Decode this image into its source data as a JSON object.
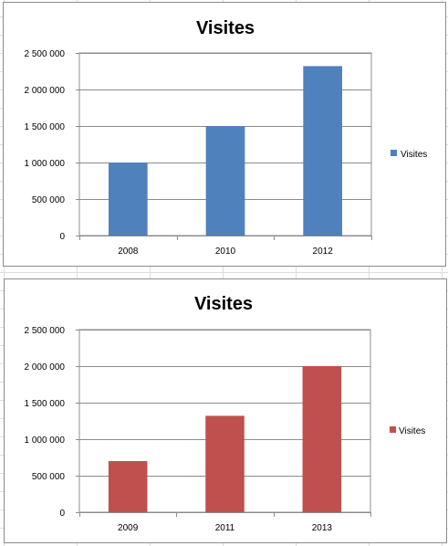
{
  "chart_data": [
    {
      "type": "bar",
      "title": "Visites",
      "categories": [
        "2008",
        "2010",
        "2012"
      ],
      "series": [
        {
          "name": "Visites",
          "values": [
            1000000,
            1500000,
            2320000
          ],
          "color": "#4f81bd"
        }
      ],
      "ylim": [
        0,
        2500000
      ],
      "yticks": [
        "0",
        "500 000",
        "1 000 000",
        "1 500 000",
        "2 000 000",
        "2 500 000"
      ],
      "ytick_values": [
        0,
        500000,
        1000000,
        1500000,
        2000000,
        2500000
      ],
      "grid": true,
      "legend": "right"
    },
    {
      "type": "bar",
      "title": "Visites",
      "categories": [
        "2009",
        "2011",
        "2013"
      ],
      "series": [
        {
          "name": "Visites",
          "values": [
            700000,
            1320000,
            2000000
          ],
          "color": "#c0504d"
        }
      ],
      "ylim": [
        0,
        2500000
      ],
      "yticks": [
        "0",
        "500 000",
        "1 000 000",
        "1 500 000",
        "2 000 000",
        "2 500 000"
      ],
      "ytick_values": [
        0,
        500000,
        1000000,
        1500000,
        2000000,
        2500000
      ],
      "grid": true,
      "legend": "right"
    }
  ]
}
